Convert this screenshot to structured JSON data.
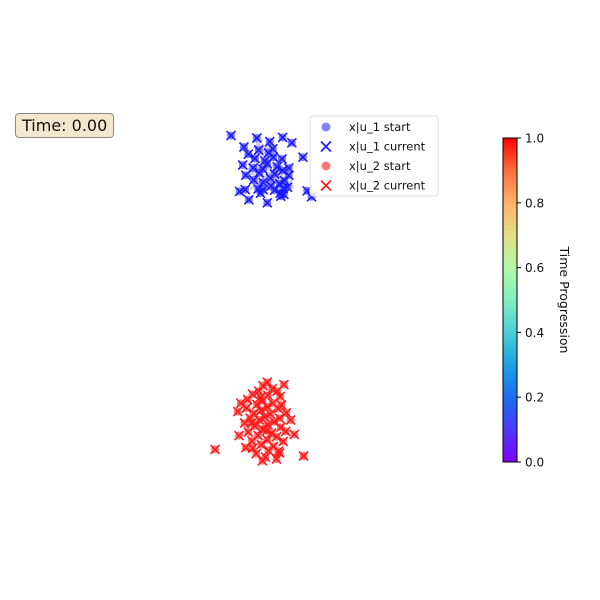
{
  "time_label": "Time: 0.00",
  "chart_data": {
    "type": "scatter",
    "time_value": 0.0,
    "xlim": [
      -3,
      4
    ],
    "ylim": [
      -4,
      4
    ],
    "legend": {
      "placement": "top-right",
      "entries": [
        {
          "label": "x|u_1 start",
          "marker": "circle",
          "color": "#5a5aff"
        },
        {
          "label": "x|u_1 current",
          "marker": "x",
          "color": "#1a1aff"
        },
        {
          "label": "x|u_2 start",
          "marker": "circle",
          "color": "#ff4a4a"
        },
        {
          "label": "x|u_2 current",
          "marker": "x",
          "color": "#ff1a1a"
        }
      ]
    },
    "colorbar": {
      "label": "Time Progression",
      "min": 0.0,
      "max": 1.0,
      "ticks": [
        "0.0",
        "0.2",
        "0.4",
        "0.6",
        "0.8",
        "1.0"
      ],
      "colormap": "rainbow"
    },
    "series": [
      {
        "name": "x|u_1 current",
        "color": "#1a1aff",
        "points": [
          [
            0.11,
            2.74
          ],
          [
            0.95,
            2.71
          ],
          [
            0.53,
            2.7
          ],
          [
            0.74,
            2.64
          ],
          [
            1.1,
            2.62
          ],
          [
            0.32,
            2.55
          ],
          [
            0.79,
            2.52
          ],
          [
            0.56,
            2.5
          ],
          [
            0.72,
            2.45
          ],
          [
            0.39,
            2.43
          ],
          [
            0.8,
            2.38
          ],
          [
            1.28,
            2.38
          ],
          [
            0.5,
            2.36
          ],
          [
            0.94,
            2.35
          ],
          [
            0.66,
            2.32
          ],
          [
            0.7,
            2.27
          ],
          [
            0.3,
            2.25
          ],
          [
            0.86,
            2.22
          ],
          [
            0.47,
            2.2
          ],
          [
            1.05,
            2.2
          ],
          [
            0.63,
            2.18
          ],
          [
            0.95,
            2.16
          ],
          [
            0.57,
            2.12
          ],
          [
            0.82,
            2.1
          ],
          [
            0.35,
            2.08
          ],
          [
            1.05,
            2.08
          ],
          [
            0.75,
            2.03
          ],
          [
            0.48,
            2.0
          ],
          [
            0.98,
            1.99
          ],
          [
            0.63,
            1.96
          ],
          [
            0.9,
            1.94
          ],
          [
            0.76,
            1.9
          ],
          [
            1.03,
            1.88
          ],
          [
            0.55,
            1.85
          ],
          [
            0.96,
            1.86
          ],
          [
            0.34,
            1.84
          ],
          [
            0.63,
            1.84
          ],
          [
            0.82,
            1.83
          ],
          [
            0.25,
            1.81
          ],
          [
            1.35,
            1.82
          ],
          [
            0.59,
            1.78
          ],
          [
            0.91,
            1.78
          ],
          [
            0.97,
            1.76
          ],
          [
            1.42,
            1.72
          ],
          [
            0.92,
            1.73
          ],
          [
            0.4,
            1.67
          ],
          [
            0.7,
            1.62
          ]
        ]
      },
      {
        "name": "x|u_2 current",
        "color": "#ff1a1a",
        "points": [
          [
            0.7,
            -1.37
          ],
          [
            0.97,
            -1.41
          ],
          [
            0.63,
            -1.43
          ],
          [
            0.78,
            -1.48
          ],
          [
            0.86,
            -1.52
          ],
          [
            0.56,
            -1.52
          ],
          [
            0.46,
            -1.57
          ],
          [
            0.71,
            -1.59
          ],
          [
            0.91,
            -1.61
          ],
          [
            0.38,
            -1.66
          ],
          [
            0.62,
            -1.68
          ],
          [
            0.79,
            -1.72
          ],
          [
            0.27,
            -1.72
          ],
          [
            0.53,
            -1.74
          ],
          [
            0.7,
            -1.78
          ],
          [
            0.88,
            -1.81
          ],
          [
            0.93,
            -1.75
          ],
          [
            0.36,
            -1.8
          ],
          [
            0.6,
            -1.84
          ],
          [
            1.01,
            -1.88
          ],
          [
            0.48,
            -1.89
          ],
          [
            0.75,
            -1.9
          ],
          [
            0.22,
            -1.86
          ],
          [
            0.66,
            -1.95
          ],
          [
            0.9,
            -1.97
          ],
          [
            0.42,
            -1.97
          ],
          [
            0.57,
            -2.0
          ],
          [
            0.81,
            -2.03
          ],
          [
            1.08,
            -2.0
          ],
          [
            0.33,
            -2.05
          ],
          [
            0.71,
            -2.08
          ],
          [
            0.5,
            -2.1
          ],
          [
            0.92,
            -2.12
          ],
          [
            0.62,
            -2.15
          ],
          [
            1.0,
            -2.19
          ],
          [
            0.39,
            -2.2
          ],
          [
            0.77,
            -2.22
          ],
          [
            0.55,
            -2.26
          ],
          [
            0.85,
            -2.28
          ],
          [
            0.24,
            -2.26
          ],
          [
            1.14,
            -2.24
          ],
          [
            0.7,
            -2.33
          ],
          [
            0.45,
            -2.35
          ],
          [
            0.96,
            -2.36
          ],
          [
            0.6,
            -2.41
          ],
          [
            0.8,
            -2.44
          ],
          [
            0.35,
            -2.46
          ],
          [
            0.72,
            -2.51
          ],
          [
            0.9,
            -2.55
          ],
          [
            0.52,
            -2.56
          ],
          [
            0.67,
            -2.62
          ],
          [
            1.29,
            -2.6
          ],
          [
            -0.15,
            -2.49
          ],
          [
            0.85,
            -2.65
          ],
          [
            0.62,
            -2.68
          ],
          [
            0.88,
            -2.52
          ],
          [
            0.46,
            -2.47
          ],
          [
            0.59,
            -1.62
          ],
          [
            0.69,
            -2.18
          ],
          [
            0.44,
            -2.05
          ]
        ]
      },
      {
        "name": "x|u_1 start",
        "color": "#c9c9f7",
        "points": [
          [
            0.55,
            2.6
          ],
          [
            0.68,
            2.53
          ],
          [
            0.6,
            2.45
          ],
          [
            0.77,
            2.4
          ],
          [
            0.49,
            2.35
          ],
          [
            0.86,
            2.3
          ],
          [
            0.66,
            2.24
          ],
          [
            0.55,
            2.2
          ],
          [
            0.78,
            2.15
          ],
          [
            0.45,
            2.12
          ],
          [
            0.9,
            2.05
          ],
          [
            0.64,
            2.02
          ],
          [
            0.82,
            1.98
          ],
          [
            1.05,
            1.95
          ],
          [
            0.5,
            1.92
          ],
          [
            0.72,
            1.88
          ]
        ]
      }
    ]
  }
}
